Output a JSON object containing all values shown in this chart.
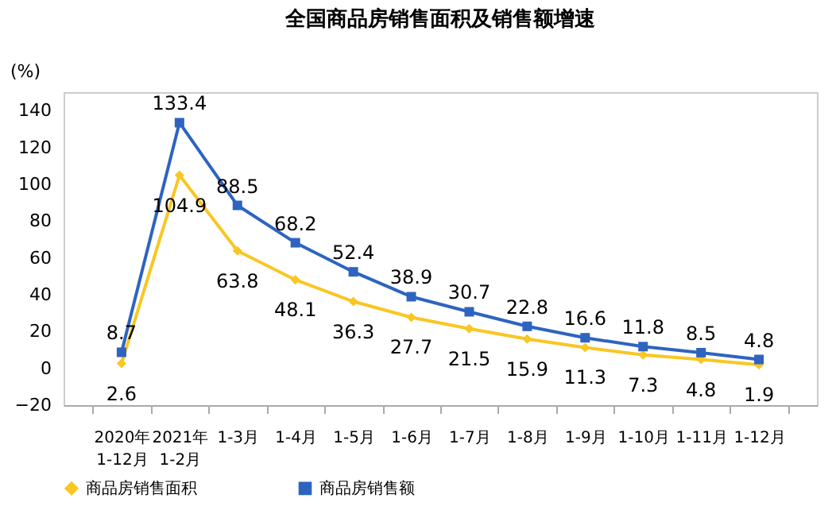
{
  "chart_data": {
    "type": "line",
    "title": "全国商品房销售面积及销售额增速",
    "ylabel": "(%)",
    "categories": [
      "2020年\n1-12月",
      "2021年\n1-2月",
      "1-3月",
      "1-4月",
      "1-5月",
      "1-6月",
      "1-7月",
      "1-8月",
      "1-9月",
      "1-10月",
      "1-11月",
      "1-12月"
    ],
    "series": [
      {
        "name": "商品房销售面积",
        "color": "#f9c623",
        "marker": "diamond",
        "values": [
          2.6,
          104.9,
          63.8,
          48.1,
          36.3,
          27.7,
          21.5,
          15.9,
          11.3,
          7.3,
          4.8,
          1.9
        ]
      },
      {
        "name": "商品房销售额",
        "color": "#2e64c0",
        "marker": "square",
        "values": [
          8.7,
          133.4,
          88.5,
          68.2,
          52.4,
          38.9,
          30.7,
          22.8,
          16.6,
          11.8,
          8.5,
          4.8
        ]
      }
    ],
    "ylim": [
      -20,
      150
    ],
    "yticks": [
      -20,
      0,
      20,
      40,
      60,
      80,
      100,
      120,
      140
    ],
    "data_labels": true,
    "grid": false,
    "legend": "bottom",
    "line_style": "solid"
  }
}
